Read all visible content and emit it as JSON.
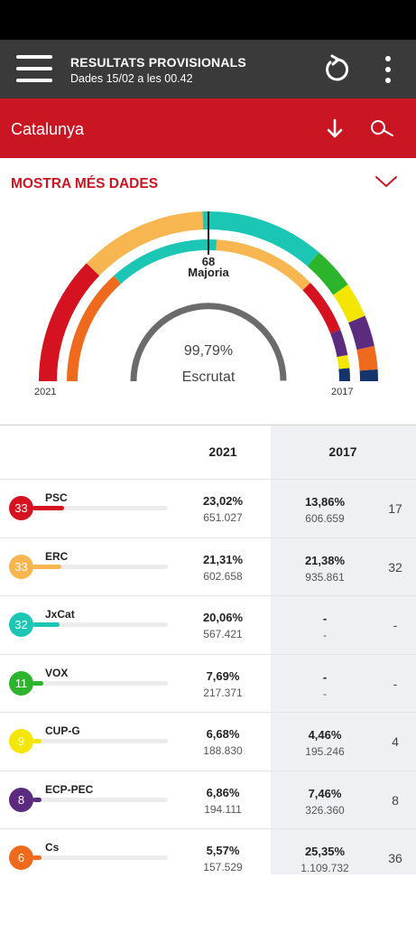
{
  "appbar": {
    "title": "RESULTATS PROVISIONALS",
    "subtitle": "Dades 15/02 a les 00.42"
  },
  "region": {
    "name": "Catalunya"
  },
  "more_data_label": "MOSTRA MÉS DADES",
  "colors": {
    "appbar": "#3a3a3a",
    "brand_red": "#c91622",
    "divider": "#cfcfcf"
  },
  "hemicycle": {
    "majority_seats": "68",
    "majority_label": "Majoria",
    "scrutiny_percent": "99,79%",
    "scrutiny_label": "Escrutat",
    "label_2021": "2021",
    "label_2017": "2017",
    "outer_2021": [
      {
        "party": "PSC",
        "seats": 33,
        "color": "#d5121f"
      },
      {
        "party": "ERC",
        "seats": 33,
        "color": "#f7b650"
      },
      {
        "party": "JxCat",
        "seats": 32,
        "color": "#1cc6b5"
      },
      {
        "party": "VOX",
        "seats": 11,
        "color": "#2cb52c"
      },
      {
        "party": "CUP-G",
        "seats": 9,
        "color": "#f4e600"
      },
      {
        "party": "ECP-PEC",
        "seats": 8,
        "color": "#5a2b7e"
      },
      {
        "party": "Cs",
        "seats": 6,
        "color": "#f06a1e"
      },
      {
        "party": "PP",
        "seats": 3,
        "color": "#13356b"
      }
    ],
    "inner_2017": [
      {
        "party": "Cs",
        "seats": 36,
        "color": "#f06a1e"
      },
      {
        "party": "JxCat",
        "seats": 34,
        "color": "#1cc6b5"
      },
      {
        "party": "ERC",
        "seats": 32,
        "color": "#f7b650"
      },
      {
        "party": "PSC",
        "seats": 17,
        "color": "#d5121f"
      },
      {
        "party": "ECP-PEC",
        "seats": 8,
        "color": "#5a2b7e"
      },
      {
        "party": "CUP-G",
        "seats": 4,
        "color": "#f4e600"
      },
      {
        "party": "PP",
        "seats": 4,
        "color": "#13356b"
      }
    ],
    "scrutiny_fraction": 0.9979
  },
  "table": {
    "header_2021": "2021",
    "header_2017": "2017",
    "rows": [
      {
        "party": "PSC",
        "seats_2021": "33",
        "color": "#d5121f",
        "bar": 0.23,
        "pct_2021": "23,02%",
        "votes_2021": "651.027",
        "pct_2017": "13,86%",
        "votes_2017": "606.659",
        "seats_2017": "17"
      },
      {
        "party": "ERC",
        "seats_2021": "33",
        "color": "#f7b650",
        "bar": 0.213,
        "pct_2021": "21,31%",
        "votes_2021": "602.658",
        "pct_2017": "21,38%",
        "votes_2017": "935.861",
        "seats_2017": "32"
      },
      {
        "party": "JxCat",
        "seats_2021": "32",
        "color": "#1cc6b5",
        "bar": 0.2,
        "pct_2021": "20,06%",
        "votes_2021": "567.421",
        "pct_2017": "-",
        "votes_2017": "-",
        "seats_2017": "-"
      },
      {
        "party": "VOX",
        "seats_2021": "11",
        "color": "#2cb52c",
        "bar": 0.077,
        "pct_2021": "7,69%",
        "votes_2021": "217.371",
        "pct_2017": "-",
        "votes_2017": "-",
        "seats_2017": "-"
      },
      {
        "party": "CUP-G",
        "seats_2021": "9",
        "color": "#f4e600",
        "bar": 0.067,
        "pct_2021": "6,68%",
        "votes_2021": "188.830",
        "pct_2017": "4,46%",
        "votes_2017": "195.246",
        "seats_2017": "4"
      },
      {
        "party": "ECP-PEC",
        "seats_2021": "8",
        "color": "#5a2b7e",
        "bar": 0.069,
        "pct_2021": "6,86%",
        "votes_2021": "194.111",
        "pct_2017": "7,46%",
        "votes_2017": "326.360",
        "seats_2017": "8"
      },
      {
        "party": "Cs",
        "seats_2021": "6",
        "color": "#f06a1e",
        "bar": 0.056,
        "pct_2021": "5,57%",
        "votes_2021": "157.529",
        "pct_2017": "25,35%",
        "votes_2017": "1.109.732",
        "seats_2017": "36"
      }
    ]
  }
}
